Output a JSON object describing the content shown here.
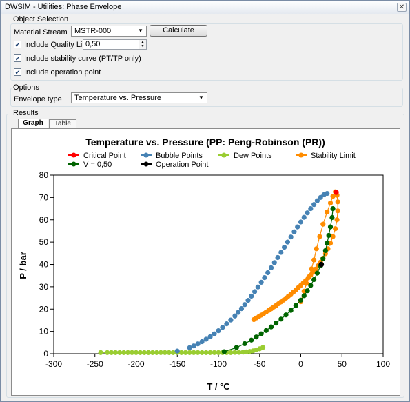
{
  "window": {
    "title": "DWSIM - Utilities: Phase Envelope",
    "close_glyph": "✕"
  },
  "object_selection": {
    "group_label": "Object Selection",
    "material_stream_label": "Material Stream",
    "material_stream_value": "MSTR-000",
    "calculate_label": "Calculate",
    "include_quality_line_label": "Include Quality Line",
    "include_quality_line_checked": true,
    "quality_value": "0,50",
    "include_stability_label": "Include stability curve (PT/TP only)",
    "include_stability_checked": true,
    "include_operation_label": "Include operation point",
    "include_operation_checked": true
  },
  "options": {
    "group_label": "Options",
    "envelope_type_label": "Envelope type",
    "envelope_type_value": "Temperature vs. Pressure"
  },
  "results": {
    "group_label": "Results",
    "tabs": [
      {
        "label": "Graph",
        "active": true
      },
      {
        "label": "Table",
        "active": false
      }
    ]
  },
  "chart_data": {
    "type": "scatter",
    "title": "Temperature vs. Pressure (PP: Peng-Robinson (PR))",
    "xlabel": "T / °C",
    "ylabel": "P / bar",
    "xlim": [
      -300,
      100
    ],
    "ylim": [
      0,
      80
    ],
    "xticks": [
      -300,
      -250,
      -200,
      -150,
      -100,
      -50,
      0,
      50,
      100
    ],
    "yticks": [
      0,
      10,
      20,
      30,
      40,
      50,
      60,
      70,
      80
    ],
    "legend_position": "top",
    "series": [
      {
        "name": "Critical Point",
        "color": "#ff0000",
        "line": false,
        "x": [
          43
        ],
        "y": [
          72.3
        ]
      },
      {
        "name": "Bubble Points",
        "color": "#4682b4",
        "line": false,
        "x": [
          -150,
          -135,
          -130,
          -125,
          -120,
          -115,
          -110,
          -105,
          -100,
          -95,
          -90,
          -85,
          -80,
          -76,
          -72,
          -68,
          -64,
          -60,
          -56,
          -52,
          -48,
          -44,
          -40,
          -36,
          -32,
          -28,
          -24,
          -20,
          -16,
          -12,
          -8,
          -4,
          0,
          4,
          8,
          12,
          16,
          20,
          24,
          28,
          32
        ],
        "y": [
          1.2,
          2.7,
          3.5,
          4.4,
          5.4,
          6.5,
          7.6,
          8.9,
          10.3,
          11.8,
          13.4,
          15.1,
          16.9,
          18.5,
          20.2,
          22.0,
          23.9,
          25.8,
          27.8,
          29.9,
          32.0,
          34.1,
          36.3,
          38.5,
          40.8,
          43.1,
          45.4,
          47.7,
          50.0,
          52.3,
          54.6,
          56.8,
          59.0,
          61.1,
          63.1,
          65.0,
          66.8,
          68.5,
          70.0,
          71.2,
          71.8
        ]
      },
      {
        "name": "Dew Points",
        "color": "#9acd32",
        "line": true,
        "x": [
          -243,
          -235,
          -230,
          -225,
          -220,
          -215,
          -210,
          -205,
          -200,
          -195,
          -190,
          -185,
          -180,
          -175,
          -170,
          -165,
          -160,
          -155,
          -150,
          -145,
          -140,
          -135,
          -130,
          -125,
          -120,
          -115,
          -110,
          -105,
          -100,
          -95,
          -90,
          -85,
          -80,
          -75,
          -70,
          -66,
          -62,
          -58,
          -54,
          -50,
          -46
        ],
        "y": [
          0.5,
          0.5,
          0.5,
          0.5,
          0.5,
          0.5,
          0.5,
          0.5,
          0.5,
          0.5,
          0.5,
          0.5,
          0.5,
          0.5,
          0.5,
          0.5,
          0.5,
          0.5,
          0.5,
          0.5,
          0.5,
          0.5,
          0.5,
          0.5,
          0.5,
          0.5,
          0.5,
          0.5,
          0.5,
          0.5,
          0.5,
          0.5,
          0.6,
          0.6,
          0.7,
          0.8,
          1.0,
          1.3,
          1.7,
          2.2,
          2.8
        ]
      },
      {
        "name": "Stability Limit",
        "color": "#ff8c00",
        "line": true,
        "x": [
          -57,
          -54,
          -51,
          -48,
          -45,
          -42,
          -39,
          -36,
          -33,
          -30,
          -27,
          -24,
          -21,
          -18,
          -15,
          -12,
          -9,
          -6,
          -3,
          0,
          3,
          6,
          9,
          12,
          15,
          18,
          21,
          24,
          27,
          30,
          33,
          36,
          39,
          42,
          44,
          45,
          45,
          44,
          42,
          39,
          36,
          32,
          27,
          23,
          19,
          16,
          13,
          10,
          7,
          4,
          0
        ],
        "y": [
          15.3,
          16.0,
          16.6,
          17.3,
          18.0,
          18.7,
          19.4,
          20.1,
          20.9,
          21.6,
          22.4,
          23.2,
          24.0,
          24.9,
          25.8,
          26.7,
          27.6,
          28.6,
          29.6,
          30.6,
          31.7,
          32.8,
          34.0,
          35.2,
          36.5,
          37.9,
          39.4,
          41.0,
          42.8,
          44.8,
          47.0,
          49.5,
          52.5,
          56.0,
          60.0,
          64.0,
          68.0,
          71.0,
          72.5,
          70.5,
          67.5,
          63.5,
          58.0,
          52.5,
          47.0,
          42.0,
          38.0,
          34.5,
          31.5,
          28.0,
          23.3
        ]
      },
      {
        "name": "V = 0,50",
        "color": "#006400",
        "line": true,
        "x": [
          -93,
          -78,
          -68,
          -60,
          -54,
          -48,
          -42,
          -36,
          -30,
          -24,
          -18,
          -12,
          -6,
          0,
          4,
          8,
          12,
          16,
          20,
          24,
          27,
          30,
          32,
          34,
          36,
          38,
          39
        ],
        "y": [
          0.9,
          2.8,
          4.5,
          6.1,
          7.5,
          8.9,
          10.4,
          12.0,
          13.7,
          15.5,
          17.4,
          19.4,
          21.6,
          24.0,
          26.0,
          28.2,
          30.6,
          33.2,
          36.1,
          39.4,
          42.6,
          46.2,
          49.5,
          53.0,
          56.8,
          61.0,
          65.0
        ]
      },
      {
        "name": "Operation Point",
        "color": "#000000",
        "line": false,
        "x": [
          25
        ],
        "y": [
          40
        ]
      }
    ]
  }
}
